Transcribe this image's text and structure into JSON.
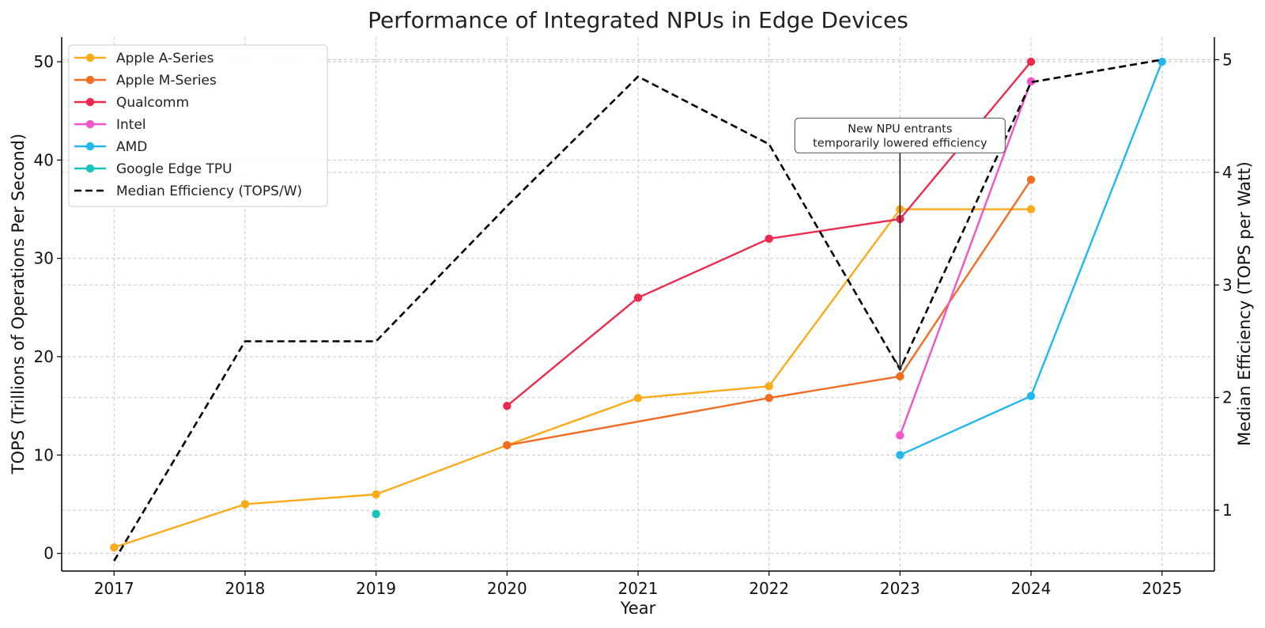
{
  "chart_data": {
    "type": "line",
    "title": "Performance of Integrated NPUs in Edge Devices",
    "xlabel": "Year",
    "ylabel": "TOPS (Trillions of Operations Per Second)",
    "y2label": "Median Efficiency (TOPS per Watt)",
    "x": [
      2017,
      2018,
      2019,
      2020,
      2021,
      2022,
      2023,
      2024,
      2025
    ],
    "xticks": [
      "2017",
      "2018",
      "2019",
      "2020",
      "2021",
      "2022",
      "2023",
      "2024",
      "2025"
    ],
    "xlim": [
      2016.6,
      2025.4
    ],
    "ylim": [
      -1.8,
      52.5
    ],
    "yticks": [
      "0",
      "10",
      "20",
      "30",
      "40",
      "50"
    ],
    "y2lim": [
      0.46,
      5.2
    ],
    "y2ticks": [
      "1",
      "2",
      "3",
      "4",
      "5"
    ],
    "grid": true,
    "legend_position": "top-left",
    "series": [
      {
        "name": "Apple A-Series",
        "color": "#fbab1a",
        "axis": "left",
        "marker": true,
        "dashed": false,
        "points": [
          [
            2017,
            0.6
          ],
          [
            2018,
            5
          ],
          [
            2019,
            6
          ],
          [
            2020,
            11
          ],
          [
            2021,
            15.8
          ],
          [
            2022,
            17
          ],
          [
            2023,
            35
          ],
          [
            2024,
            35
          ]
        ]
      },
      {
        "name": "Apple M-Series",
        "color": "#f26c22",
        "axis": "left",
        "marker": true,
        "dashed": false,
        "points": [
          [
            2020,
            11
          ],
          [
            2022,
            15.8
          ],
          [
            2023,
            18
          ],
          [
            2024,
            38
          ]
        ]
      },
      {
        "name": "Qualcomm",
        "color": "#ec2a4f",
        "axis": "left",
        "marker": true,
        "dashed": false,
        "points": [
          [
            2020,
            15
          ],
          [
            2021,
            26
          ],
          [
            2022,
            32
          ],
          [
            2023,
            34
          ],
          [
            2024,
            50
          ]
        ]
      },
      {
        "name": "Intel",
        "color": "#f354c6",
        "axis": "left",
        "marker": true,
        "dashed": false,
        "points": [
          [
            2023,
            12
          ],
          [
            2024,
            48
          ]
        ]
      },
      {
        "name": "AMD",
        "color": "#21b7ef",
        "axis": "left",
        "marker": true,
        "dashed": false,
        "points": [
          [
            2023,
            10
          ],
          [
            2024,
            16
          ],
          [
            2025,
            50
          ]
        ]
      },
      {
        "name": "Google Edge TPU",
        "color": "#17c3bb",
        "axis": "left",
        "marker": true,
        "dashed": false,
        "points": [
          [
            2019,
            4
          ]
        ]
      },
      {
        "name": "Median Efficiency (TOPS/W)",
        "color": "#000000",
        "axis": "right",
        "marker": false,
        "dashed": true,
        "points": [
          [
            2017,
            0.55
          ],
          [
            2018,
            2.5
          ],
          [
            2019,
            2.5
          ],
          [
            2020,
            3.7
          ],
          [
            2021,
            4.85
          ],
          [
            2022,
            4.25
          ],
          [
            2023,
            2.25
          ],
          [
            2024,
            4.8
          ],
          [
            2025,
            5.0
          ]
        ]
      }
    ],
    "annotation": {
      "lines": [
        "New NPU entrants",
        "temporarily lowered efficiency"
      ],
      "target_x": 2023,
      "target_y": 2.25,
      "target_axis": "right",
      "box_center_x": 2023,
      "box_center_y": 42.5
    }
  }
}
